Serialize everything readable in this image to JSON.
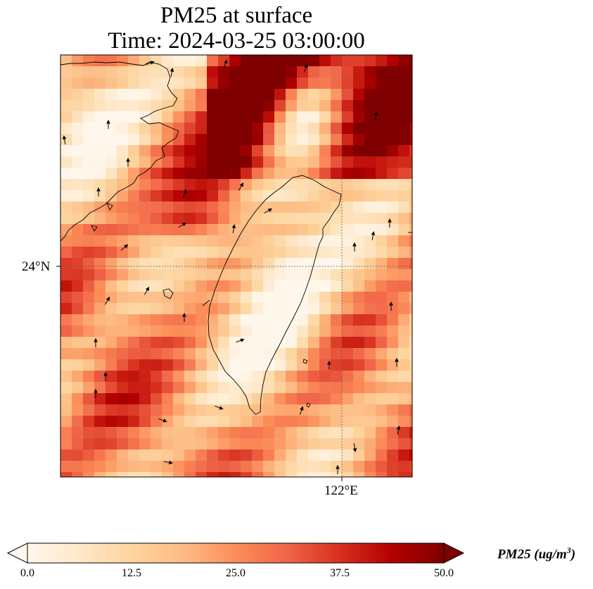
{
  "title": {
    "line1": "PM25 at surface",
    "line2": "Time: 2024-03-25 03:00:00"
  },
  "axes": {
    "lat_tick": "24°N",
    "lon_tick": "122°E"
  },
  "colorbar": {
    "label_main": "PM25 (ug/m",
    "label_sup": "3",
    "label_close": ")",
    "ticks": [
      "0.0",
      "12.5",
      "25.0",
      "37.5",
      "50.0"
    ],
    "range": [
      0,
      50
    ],
    "extend": "both",
    "colormap": "OrRd",
    "stops": [
      "#fff7ec",
      "#fee8c8",
      "#fdd49e",
      "#fdbb84",
      "#fc8d59",
      "#ef6548",
      "#d7301f",
      "#b30000",
      "#7f0000"
    ]
  },
  "colors": {
    "coastline": "#000000",
    "grid": "#555555",
    "wind_arrow": "#000000"
  }
}
